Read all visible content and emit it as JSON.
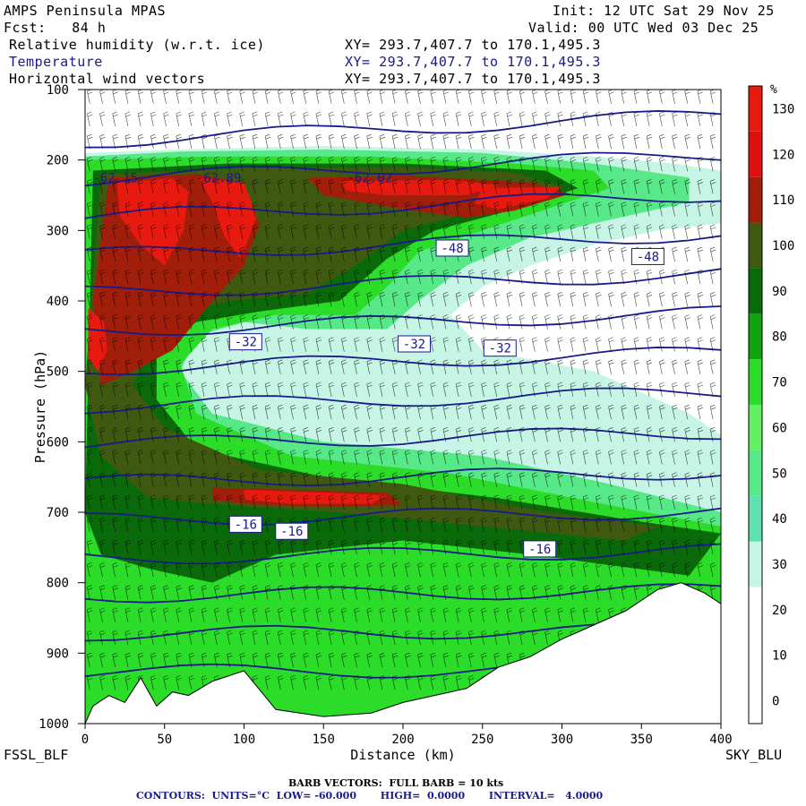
{
  "header": {
    "model": "AMPS Peninsula MPAS",
    "forecast": "Fcst:   84 h",
    "init": "Init: 12 UTC Sat 29 Nov 25",
    "valid": "Valid: 00 UTC Wed 03 Dec 25"
  },
  "fields": [
    {
      "name": "Relative humidity (w.r.t. ice)",
      "xy": "XY= 293.7,407.7 to 170.1,495.3",
      "color": "#000000"
    },
    {
      "name": "Temperature",
      "xy": "XY= 293.7,407.7 to 170.1,495.3",
      "color": "#1a1a8a"
    },
    {
      "name": "Horizontal wind vectors",
      "xy": "XY= 293.7,407.7 to 170.1,495.3",
      "color": "#000000"
    }
  ],
  "chart_data": {
    "type": "heatmap",
    "title": "",
    "xlabel": "Distance (km)",
    "ylabel": "Pressure (hPa)",
    "x_ticks": [
      0,
      50,
      100,
      150,
      200,
      250,
      300,
      350,
      400
    ],
    "xlim": [
      0,
      400
    ],
    "y_ticks": [
      100,
      200,
      300,
      400,
      500,
      600,
      700,
      800,
      900,
      1000
    ],
    "ylim": [
      100,
      1000
    ],
    "endpoints": {
      "left": "FSSL_BLF",
      "right": "SKY_BLU"
    },
    "colorbar": {
      "unit": "%",
      "levels": [
        0,
        10,
        20,
        30,
        40,
        50,
        60,
        70,
        80,
        90,
        100,
        110,
        120,
        130
      ],
      "colors": [
        "#ffffff",
        "#ffffff",
        "#ffffff",
        "#c6f5e6",
        "#5fe0b0",
        "#57e887",
        "#62f063",
        "#2bdc28",
        "#0fa30f",
        "#0a6a0a",
        "#3f5a10",
        "#a01e0a",
        "#e01010",
        "#e81a10"
      ]
    },
    "rh_regions": [
      {
        "level": 30,
        "points": [
          [
            0,
            190
          ],
          [
            60,
            185
          ],
          [
            150,
            180
          ],
          [
            250,
            185
          ],
          [
            320,
            195
          ],
          [
            370,
            205
          ],
          [
            400,
            215
          ],
          [
            400,
            290
          ],
          [
            360,
            300
          ],
          [
            320,
            320
          ],
          [
            280,
            350
          ],
          [
            250,
            380
          ],
          [
            230,
            420
          ],
          [
            250,
            470
          ],
          [
            320,
            500
          ],
          [
            380,
            560
          ],
          [
            400,
            590
          ],
          [
            400,
            1000
          ],
          [
            0,
            1000
          ]
        ]
      },
      {
        "level": 50,
        "points": [
          [
            0,
            195
          ],
          [
            60,
            188
          ],
          [
            150,
            185
          ],
          [
            250,
            190
          ],
          [
            320,
            205
          ],
          [
            380,
            225
          ],
          [
            380,
            260
          ],
          [
            330,
            285
          ],
          [
            280,
            310
          ],
          [
            240,
            350
          ],
          [
            210,
            400
          ],
          [
            190,
            440
          ],
          [
            140,
            440
          ],
          [
            100,
            430
          ],
          [
            70,
            450
          ],
          [
            60,
            500
          ],
          [
            80,
            560
          ],
          [
            150,
            600
          ],
          [
            250,
            620
          ],
          [
            330,
            660
          ],
          [
            400,
            700
          ],
          [
            400,
            1000
          ],
          [
            0,
            1000
          ]
        ]
      },
      {
        "level": 70,
        "points": [
          [
            0,
            200
          ],
          [
            80,
            195
          ],
          [
            180,
            195
          ],
          [
            270,
            205
          ],
          [
            320,
            215
          ],
          [
            330,
            240
          ],
          [
            290,
            270
          ],
          [
            250,
            300
          ],
          [
            210,
            330
          ],
          [
            190,
            380
          ],
          [
            170,
            420
          ],
          [
            120,
            420
          ],
          [
            80,
            440
          ],
          [
            60,
            490
          ],
          [
            70,
            560
          ],
          [
            130,
            620
          ],
          [
            230,
            645
          ],
          [
            330,
            690
          ],
          [
            400,
            720
          ],
          [
            400,
            1000
          ],
          [
            0,
            1000
          ]
        ]
      },
      {
        "level": 90,
        "points": [
          [
            5,
            215
          ],
          [
            90,
            205
          ],
          [
            200,
            205
          ],
          [
            290,
            215
          ],
          [
            310,
            240
          ],
          [
            270,
            270
          ],
          [
            220,
            300
          ],
          [
            190,
            340
          ],
          [
            160,
            400
          ],
          [
            110,
            415
          ],
          [
            70,
            430
          ],
          [
            45,
            470
          ],
          [
            45,
            540
          ],
          [
            70,
            610
          ],
          [
            150,
            650
          ],
          [
            260,
            680
          ],
          [
            340,
            710
          ],
          [
            400,
            730
          ],
          [
            380,
            790
          ],
          [
            280,
            760
          ],
          [
            200,
            740
          ],
          [
            120,
            760
          ],
          [
            80,
            800
          ],
          [
            40,
            780
          ],
          [
            10,
            760
          ],
          [
            0,
            700
          ]
        ]
      },
      {
        "level": 100,
        "points": [
          [
            10,
            220
          ],
          [
            100,
            212
          ],
          [
            200,
            210
          ],
          [
            270,
            218
          ],
          [
            300,
            238
          ],
          [
            250,
            270
          ],
          [
            200,
            300
          ],
          [
            170,
            350
          ],
          [
            140,
            390
          ],
          [
            90,
            400
          ],
          [
            60,
            420
          ],
          [
            40,
            470
          ],
          [
            30,
            520
          ],
          [
            50,
            580
          ],
          [
            110,
            640
          ],
          [
            200,
            660
          ],
          [
            290,
            700
          ],
          [
            360,
            720
          ],
          [
            340,
            740
          ],
          [
            250,
            720
          ],
          [
            160,
            700
          ],
          [
            90,
            690
          ],
          [
            40,
            680
          ],
          [
            10,
            620
          ],
          [
            0,
            520
          ]
        ]
      },
      {
        "level": 110,
        "points": [
          [
            15,
            225
          ],
          [
            70,
            220
          ],
          [
            95,
            230
          ],
          [
            110,
            290
          ],
          [
            100,
            350
          ],
          [
            80,
            400
          ],
          [
            55,
            470
          ],
          [
            30,
            500
          ],
          [
            10,
            520
          ],
          [
            5,
            400
          ]
        ]
      },
      {
        "level": 110,
        "points": [
          [
            140,
            225
          ],
          [
            200,
            222
          ],
          [
            280,
            232
          ],
          [
            305,
            248
          ],
          [
            270,
            272
          ],
          [
            240,
            282
          ],
          [
            200,
            270
          ],
          [
            150,
            250
          ]
        ]
      },
      {
        "level": 110,
        "points": [
          [
            80,
            665
          ],
          [
            130,
            668
          ],
          [
            190,
            672
          ],
          [
            200,
            690
          ],
          [
            160,
            692
          ],
          [
            110,
            690
          ],
          [
            80,
            682
          ]
        ]
      },
      {
        "level": 130,
        "points": [
          [
            20,
            232
          ],
          [
            55,
            226
          ],
          [
            65,
            245
          ],
          [
            62,
            300
          ],
          [
            50,
            350
          ],
          [
            35,
            320
          ],
          [
            22,
            280
          ]
        ]
      },
      {
        "level": 130,
        "points": [
          [
            72,
            226
          ],
          [
            100,
            232
          ],
          [
            108,
            280
          ],
          [
            98,
            340
          ],
          [
            88,
            310
          ],
          [
            80,
            260
          ]
        ]
      },
      {
        "level": 130,
        "points": [
          [
            160,
            230
          ],
          [
            230,
            228
          ],
          [
            260,
            236
          ],
          [
            240,
            250
          ],
          [
            190,
            250
          ],
          [
            165,
            244
          ]
        ]
      },
      {
        "level": 130,
        "points": [
          [
            250,
            240
          ],
          [
            300,
            238
          ],
          [
            290,
            255
          ],
          [
            260,
            270
          ],
          [
            245,
            262
          ]
        ]
      },
      {
        "level": 130,
        "points": [
          [
            100,
            668
          ],
          [
            150,
            672
          ],
          [
            190,
            676
          ],
          [
            180,
            688
          ],
          [
            130,
            688
          ],
          [
            100,
            682
          ]
        ]
      },
      {
        "level": 130,
        "points": [
          [
            2,
            410
          ],
          [
            12,
            430
          ],
          [
            14,
            470
          ],
          [
            8,
            500
          ],
          [
            2,
            480
          ]
        ]
      }
    ],
    "temperature_contours": {
      "units": "°C",
      "interval": 4.0,
      "low": -60.0,
      "high": 0.0,
      "labels": [
        {
          "text": "-48",
          "x": 222,
          "p": 325
        },
        {
          "text": "-48",
          "x": 345,
          "p": 337
        },
        {
          "text": "-32",
          "x": 92,
          "p": 458
        },
        {
          "text": "-32",
          "x": 198,
          "p": 461
        },
        {
          "text": "-32",
          "x": 252,
          "p": 467
        },
        {
          "text": "-16",
          "x": 92,
          "p": 717
        },
        {
          "text": "-16",
          "x": 121,
          "p": 727
        },
        {
          "text": "-16",
          "x": 277,
          "p": 752
        },
        {
          "text": "-62.15",
          "x": 10,
          "p": 225
        },
        {
          "text": "-62.89",
          "x": 75,
          "p": 225
        },
        {
          "text": "-62.02",
          "x": 170,
          "p": 225
        }
      ]
    },
    "terrain_top": [
      [
        0,
        1000
      ],
      [
        5,
        975
      ],
      [
        15,
        960
      ],
      [
        25,
        970
      ],
      [
        35,
        935
      ],
      [
        45,
        975
      ],
      [
        55,
        955
      ],
      [
        65,
        960
      ],
      [
        80,
        940
      ],
      [
        100,
        925
      ],
      [
        120,
        980
      ],
      [
        150,
        990
      ],
      [
        180,
        985
      ],
      [
        200,
        970
      ],
      [
        220,
        960
      ],
      [
        240,
        950
      ],
      [
        260,
        920
      ],
      [
        280,
        905
      ],
      [
        300,
        880
      ],
      [
        320,
        860
      ],
      [
        340,
        840
      ],
      [
        360,
        810
      ],
      [
        375,
        800
      ],
      [
        390,
        815
      ],
      [
        400,
        830
      ],
      [
        400,
        1000
      ]
    ],
    "footer": {
      "barb": "BARB VECTORS:  FULL BARB = 10 kts",
      "contours": "CONTOURS:  UNITS=°C  LOW= -60.000       HIGH=  0.0000       INTERVAL=   4.0000"
    }
  }
}
